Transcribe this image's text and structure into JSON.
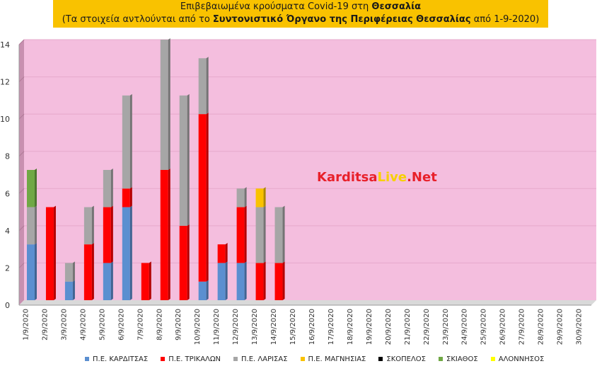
{
  "title": {
    "line1_prefix": "Επιβεβαιωμένα κρούσματα Covid-19 στη ",
    "line1_bold": "Θεσσαλία",
    "line2_prefix": "(Τα στοιχεία αντλούνται από το ",
    "line2_bold": "Συντονιστικό Όργανο της Περιφέρειας Θεσσαλίας",
    "line2_suffix": " από 1-9-2020)"
  },
  "watermark": {
    "part1": "Karditsa",
    "part2": "Live",
    "part3": ".Net"
  },
  "colors": {
    "plot_background": "#f4bede",
    "side_wall": "#c890b0",
    "series": [
      "#5b8fd0",
      "#ff0000",
      "#a6a6a6",
      "#f9c200",
      "#000000",
      "#70a845",
      "#ffff00"
    ]
  },
  "chart_data": {
    "type": "bar",
    "stacked": true,
    "categories": [
      "1/9/2020",
      "2/9/2020",
      "3/9/2020",
      "4/9/2020",
      "5/9/2020",
      "6/9/2020",
      "7/9/2020",
      "8/9/2020",
      "9/9/2020",
      "10/9/2020",
      "11/9/2020",
      "12/9/2020",
      "13/9/2020",
      "14/9/2020",
      "15/9/2020",
      "16/9/2020",
      "17/9/2020",
      "18/9/2020",
      "19/9/2020",
      "20/9/2020",
      "21/9/2020",
      "22/9/2020",
      "23/9/2020",
      "24/9/2020",
      "25/9/2020",
      "26/9/2020",
      "27/9/2020",
      "28/9/2020",
      "29/9/2020",
      "30/9/2020"
    ],
    "series": [
      {
        "name": "Π.Ε. ΚΑΡΔΙΤΣΑΣ",
        "values": [
          3,
          0,
          1,
          0,
          2,
          5,
          0,
          0,
          0,
          1,
          2,
          2,
          0,
          0,
          0,
          0,
          0,
          0,
          0,
          0,
          0,
          0,
          0,
          0,
          0,
          0,
          0,
          0,
          0,
          0
        ]
      },
      {
        "name": "Π.Ε. ΤΡΙΚΑΛΩΝ",
        "values": [
          0,
          5,
          0,
          3,
          3,
          1,
          2,
          7,
          4,
          9,
          1,
          3,
          2,
          2,
          0,
          0,
          0,
          0,
          0,
          0,
          0,
          0,
          0,
          0,
          0,
          0,
          0,
          0,
          0,
          0
        ]
      },
      {
        "name": "Π.Ε. ΛΑΡΙΣΑΣ",
        "values": [
          2,
          0,
          1,
          2,
          2,
          5,
          0,
          7,
          7,
          3,
          0,
          1,
          3,
          3,
          0,
          0,
          0,
          0,
          0,
          0,
          0,
          0,
          0,
          0,
          0,
          0,
          0,
          0,
          0,
          0
        ]
      },
      {
        "name": "Π.Ε. ΜΑΓΝΗΣΙΑΣ",
        "values": [
          0,
          0,
          0,
          0,
          0,
          0,
          0,
          0,
          0,
          0,
          0,
          0,
          1,
          0,
          0,
          0,
          0,
          0,
          0,
          0,
          0,
          0,
          0,
          0,
          0,
          0,
          0,
          0,
          0,
          0
        ]
      },
      {
        "name": "ΣΚΟΠΕΛΟΣ",
        "values": [
          0,
          0,
          0,
          0,
          0,
          0,
          0,
          0,
          0,
          0,
          0,
          0,
          0,
          0,
          0,
          0,
          0,
          0,
          0,
          0,
          0,
          0,
          0,
          0,
          0,
          0,
          0,
          0,
          0,
          0
        ]
      },
      {
        "name": "ΣΚΙΑΘΟΣ",
        "values": [
          2,
          0,
          0,
          0,
          0,
          0,
          0,
          0,
          0,
          0,
          0,
          0,
          0,
          0,
          0,
          0,
          0,
          0,
          0,
          0,
          0,
          0,
          0,
          0,
          0,
          0,
          0,
          0,
          0,
          0
        ]
      },
      {
        "name": "ΑΛΟΝΝΗΣΟΣ",
        "values": [
          0,
          0,
          0,
          0,
          0,
          0,
          0,
          0,
          0,
          0,
          0,
          0,
          0,
          0,
          0,
          0,
          0,
          0,
          0,
          0,
          0,
          0,
          0,
          0,
          0,
          0,
          0,
          0,
          0,
          0
        ]
      }
    ],
    "ylim": [
      0,
      14
    ],
    "yticks": [
      0,
      2,
      4,
      6,
      8,
      10,
      12,
      14
    ],
    "grid": true,
    "legend_position": "bottom"
  }
}
